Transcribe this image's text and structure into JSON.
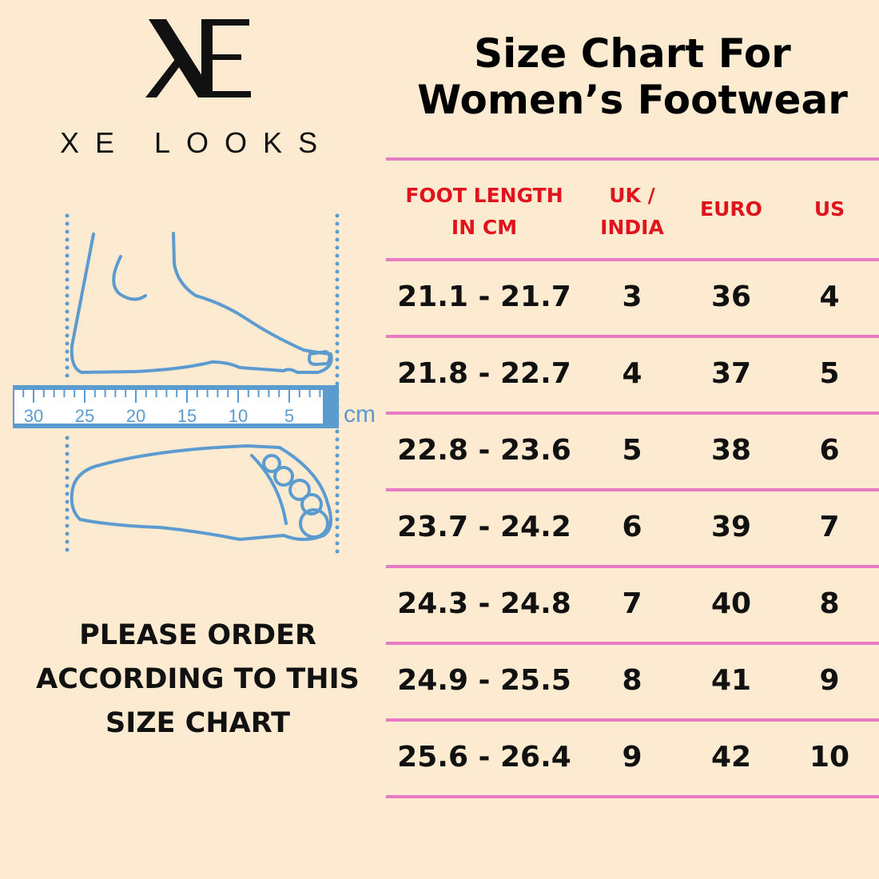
{
  "brand": {
    "logo_mark": "XE",
    "name": "XE LOOKS"
  },
  "title": [
    "Size Chart For",
    "Women’s Footwear"
  ],
  "diagram": {
    "unit": "cm",
    "ruler_labels": [
      "30",
      "25",
      "20",
      "15",
      "10",
      "5"
    ]
  },
  "note": [
    "PLEASE ORDER",
    "ACCORDING TO THIS",
    "SIZE CHART"
  ],
  "colors": {
    "background": "#fdebd1",
    "rule": "#e87cc4",
    "header": "#e0141c",
    "diagram": "#5b9bd0"
  },
  "table": {
    "headers": [
      [
        "FOOT LENGTH",
        "IN CM"
      ],
      [
        "UK /",
        "INDIA"
      ],
      [
        "EURO"
      ],
      [
        "US"
      ]
    ],
    "rows": [
      [
        "21.1 - 21.7",
        "3",
        "36",
        "4"
      ],
      [
        "21.8 - 22.7",
        "4",
        "37",
        "5"
      ],
      [
        "22.8 - 23.6",
        "5",
        "38",
        "6"
      ],
      [
        "23.7 - 24.2",
        "6",
        "39",
        "7"
      ],
      [
        "24.3 - 24.8",
        "7",
        "40",
        "8"
      ],
      [
        "24.9 - 25.5",
        "8",
        "41",
        "9"
      ],
      [
        "25.6 - 26.4",
        "9",
        "42",
        "10"
      ]
    ]
  }
}
